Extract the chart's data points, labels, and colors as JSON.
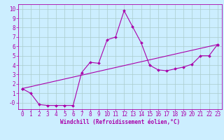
{
  "xlabel": "Windchill (Refroidissement éolien,°C)",
  "bg_color": "#cceeff",
  "line_color": "#aa00aa",
  "grid_color": "#aacccc",
  "xlim": [
    -0.5,
    23.5
  ],
  "ylim": [
    -0.7,
    10.5
  ],
  "xticks": [
    0,
    1,
    2,
    3,
    4,
    5,
    6,
    7,
    8,
    9,
    10,
    11,
    12,
    13,
    14,
    15,
    16,
    17,
    18,
    19,
    20,
    21,
    22,
    23
  ],
  "yticks": [
    0,
    1,
    2,
    3,
    4,
    5,
    6,
    7,
    8,
    9,
    10
  ],
  "ytick_labels": [
    "-0",
    "1",
    "2",
    "3",
    "4",
    "5",
    "6",
    "7",
    "8",
    "9",
    "10"
  ],
  "series1_x": [
    0,
    1,
    2,
    3,
    4,
    5,
    6,
    7,
    8,
    9,
    10,
    11,
    12,
    13,
    14,
    15,
    16,
    17,
    18,
    19,
    20,
    21,
    22,
    23
  ],
  "series1_y": [
    1.5,
    1.0,
    -0.2,
    -0.3,
    -0.3,
    -0.3,
    -0.3,
    3.2,
    4.3,
    4.2,
    6.7,
    7.0,
    9.8,
    8.1,
    6.4,
    4.0,
    3.5,
    3.4,
    3.6,
    3.8,
    4.1,
    5.0,
    5.0,
    6.2
  ],
  "series2_x": [
    0,
    23
  ],
  "series2_y": [
    1.5,
    6.2
  ],
  "xlabel_fontsize": 5.5,
  "tick_fontsize": 5.5,
  "marker_size": 2.0,
  "linewidth": 0.8
}
